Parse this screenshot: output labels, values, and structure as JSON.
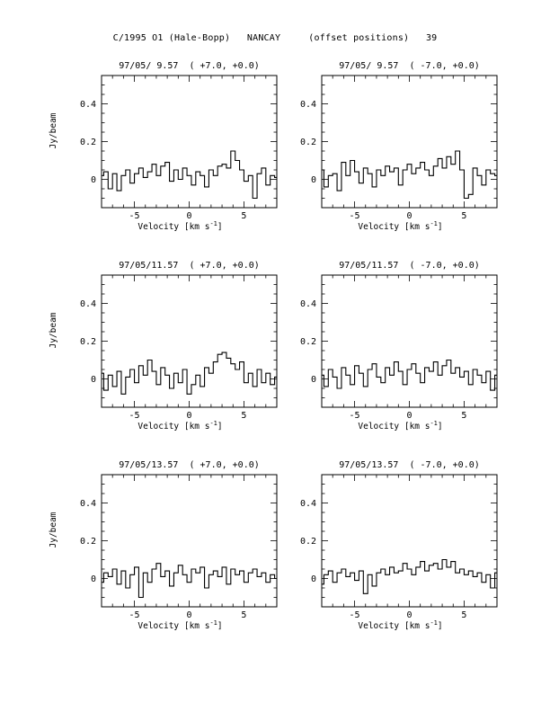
{
  "page_title": "C/1995 O1 (Hale-Bopp)   NANCAY     (offset positions)   39",
  "chart_data": [
    {
      "type": "line",
      "title": "97/05/ 9.57  ( +7.0, +0.0)",
      "xlabel": "Velocity [km s",
      "xlabel_sup": "-1",
      "xlabel_end": "]",
      "ylabel": "Jy/beam",
      "xlim": [
        -8,
        8
      ],
      "ylim": [
        -0.15,
        0.55
      ],
      "xticks": [
        -5,
        0,
        5
      ],
      "yticks": [
        0,
        0.2,
        0.4
      ],
      "x": [
        -8.0,
        -7.6,
        -7.2,
        -6.8,
        -6.4,
        -6.0,
        -5.6,
        -5.2,
        -4.8,
        -4.4,
        -4.0,
        -3.6,
        -3.2,
        -2.8,
        -2.4,
        -2.0,
        -1.6,
        -1.2,
        -0.8,
        -0.4,
        0.0,
        0.4,
        0.8,
        1.2,
        1.6,
        2.0,
        2.4,
        2.8,
        3.2,
        3.6,
        4.0,
        4.4,
        4.8,
        5.2,
        5.6,
        6.0,
        6.4,
        6.8,
        7.2,
        7.6,
        8.0
      ],
      "y": [
        0.02,
        0.04,
        -0.05,
        0.03,
        -0.06,
        0.02,
        0.05,
        -0.02,
        0.03,
        0.06,
        0.01,
        0.04,
        0.08,
        0.02,
        0.07,
        0.09,
        -0.01,
        0.05,
        0.0,
        0.06,
        0.02,
        -0.03,
        0.04,
        0.02,
        -0.04,
        0.05,
        0.02,
        0.07,
        0.08,
        0.06,
        0.15,
        0.1,
        0.05,
        -0.01,
        0.02,
        -0.1,
        0.03,
        0.06,
        -0.03,
        0.02,
        0.01
      ]
    },
    {
      "type": "line",
      "title": "97/05/ 9.57  ( -7.0, +0.0)",
      "xlabel": "Velocity [km s",
      "xlabel_sup": "-1",
      "xlabel_end": "]",
      "ylabel": "",
      "xlim": [
        -8,
        8
      ],
      "ylim": [
        -0.15,
        0.55
      ],
      "xticks": [
        -5,
        0,
        5
      ],
      "yticks": [
        0,
        0.2,
        0.4
      ],
      "x": [
        -8.0,
        -7.6,
        -7.2,
        -6.8,
        -6.4,
        -6.0,
        -5.6,
        -5.2,
        -4.8,
        -4.4,
        -4.0,
        -3.6,
        -3.2,
        -2.8,
        -2.4,
        -2.0,
        -1.6,
        -1.2,
        -0.8,
        -0.4,
        0.0,
        0.4,
        0.8,
        1.2,
        1.6,
        2.0,
        2.4,
        2.8,
        3.2,
        3.6,
        4.0,
        4.4,
        4.8,
        5.2,
        5.6,
        6.0,
        6.4,
        6.8,
        7.2,
        7.6,
        8.0
      ],
      "y": [
        0.05,
        -0.04,
        0.02,
        0.03,
        -0.06,
        0.09,
        0.02,
        0.1,
        0.04,
        -0.02,
        0.06,
        0.03,
        -0.04,
        0.05,
        0.02,
        0.07,
        0.04,
        0.06,
        -0.03,
        0.05,
        0.08,
        0.03,
        0.06,
        0.09,
        0.05,
        0.02,
        0.07,
        0.11,
        0.06,
        0.12,
        0.08,
        0.15,
        0.05,
        -0.1,
        -0.08,
        0.06,
        0.02,
        -0.03,
        0.05,
        0.03,
        0.02
      ]
    },
    {
      "type": "line",
      "title": "97/05/11.57  ( +7.0, +0.0)",
      "xlabel": "Velocity [km s",
      "xlabel_sup": "-1",
      "xlabel_end": "]",
      "ylabel": "Jy/beam",
      "xlim": [
        -8,
        8
      ],
      "ylim": [
        -0.15,
        0.55
      ],
      "xticks": [
        -5,
        0,
        5
      ],
      "yticks": [
        0,
        0.2,
        0.4
      ],
      "x": [
        -8.0,
        -7.6,
        -7.2,
        -6.8,
        -6.4,
        -6.0,
        -5.6,
        -5.2,
        -4.8,
        -4.4,
        -4.0,
        -3.6,
        -3.2,
        -2.8,
        -2.4,
        -2.0,
        -1.6,
        -1.2,
        -0.8,
        -0.4,
        0.0,
        0.4,
        0.8,
        1.2,
        1.6,
        2.0,
        2.4,
        2.8,
        3.2,
        3.6,
        4.0,
        4.4,
        4.8,
        5.2,
        5.6,
        6.0,
        6.4,
        6.8,
        7.2,
        7.6,
        8.0
      ],
      "y": [
        0.03,
        -0.06,
        0.02,
        -0.04,
        0.04,
        -0.08,
        0.01,
        0.05,
        -0.02,
        0.07,
        0.02,
        0.1,
        0.04,
        -0.03,
        0.06,
        0.02,
        -0.05,
        0.03,
        -0.02,
        0.05,
        -0.08,
        -0.03,
        0.02,
        -0.04,
        0.06,
        0.03,
        0.09,
        0.13,
        0.14,
        0.11,
        0.08,
        0.05,
        0.09,
        -0.02,
        0.03,
        -0.04,
        0.05,
        -0.02,
        0.03,
        -0.03,
        0.01
      ]
    },
    {
      "type": "line",
      "title": "97/05/11.57  ( -7.0, +0.0)",
      "xlabel": "Velocity [km s",
      "xlabel_sup": "-1",
      "xlabel_end": "]",
      "ylabel": "",
      "xlim": [
        -8,
        8
      ],
      "ylim": [
        -0.15,
        0.55
      ],
      "xticks": [
        -5,
        0,
        5
      ],
      "yticks": [
        0,
        0.2,
        0.4
      ],
      "x": [
        -8.0,
        -7.6,
        -7.2,
        -6.8,
        -6.4,
        -6.0,
        -5.6,
        -5.2,
        -4.8,
        -4.4,
        -4.0,
        -3.6,
        -3.2,
        -2.8,
        -2.4,
        -2.0,
        -1.6,
        -1.2,
        -0.8,
        -0.4,
        0.0,
        0.4,
        0.8,
        1.2,
        1.6,
        2.0,
        2.4,
        2.8,
        3.2,
        3.6,
        4.0,
        4.4,
        4.8,
        5.2,
        5.6,
        6.0,
        6.4,
        6.8,
        7.2,
        7.6,
        8.0
      ],
      "y": [
        0.02,
        -0.04,
        0.05,
        0.01,
        -0.05,
        0.06,
        0.02,
        -0.03,
        0.07,
        0.03,
        -0.04,
        0.05,
        0.08,
        0.01,
        -0.02,
        0.06,
        0.02,
        0.09,
        0.04,
        -0.03,
        0.05,
        0.08,
        0.03,
        -0.02,
        0.06,
        0.04,
        0.09,
        0.02,
        0.07,
        0.1,
        0.03,
        0.06,
        0.01,
        0.04,
        -0.03,
        0.05,
        0.02,
        -0.02,
        0.04,
        -0.06,
        0.02
      ]
    },
    {
      "type": "line",
      "title": "97/05/13.57  ( +7.0, +0.0)",
      "xlabel": "Velocity [km s",
      "xlabel_sup": "-1",
      "xlabel_end": "]",
      "ylabel": "Jy/beam",
      "xlim": [
        -8,
        8
      ],
      "ylim": [
        -0.15,
        0.55
      ],
      "xticks": [
        -5,
        0,
        5
      ],
      "yticks": [
        0,
        0.2,
        0.4
      ],
      "x": [
        -8.0,
        -7.6,
        -7.2,
        -6.8,
        -6.4,
        -6.0,
        -5.6,
        -5.2,
        -4.8,
        -4.4,
        -4.0,
        -3.6,
        -3.2,
        -2.8,
        -2.4,
        -2.0,
        -1.6,
        -1.2,
        -0.8,
        -0.4,
        0.0,
        0.4,
        0.8,
        1.2,
        1.6,
        2.0,
        2.4,
        2.8,
        3.2,
        3.6,
        4.0,
        4.4,
        4.8,
        5.2,
        5.6,
        6.0,
        6.4,
        6.8,
        7.2,
        7.6,
        8.0
      ],
      "y": [
        -0.02,
        0.03,
        0.01,
        0.05,
        -0.03,
        0.04,
        -0.05,
        0.02,
        0.06,
        -0.1,
        0.03,
        -0.02,
        0.05,
        0.08,
        0.01,
        0.04,
        -0.04,
        0.03,
        0.07,
        0.02,
        -0.02,
        0.05,
        0.03,
        0.06,
        -0.05,
        0.02,
        0.04,
        0.01,
        0.06,
        -0.03,
        0.05,
        0.02,
        0.04,
        -0.02,
        0.03,
        0.05,
        0.01,
        0.03,
        -0.02,
        0.02,
        0.0
      ]
    },
    {
      "type": "line",
      "title": "97/05/13.57  ( -7.0, +0.0)",
      "xlabel": "Velocity [km s",
      "xlabel_sup": "-1",
      "xlabel_end": "]",
      "ylabel": "",
      "xlim": [
        -8,
        8
      ],
      "ylim": [
        -0.15,
        0.55
      ],
      "xticks": [
        -5,
        0,
        5
      ],
      "yticks": [
        0,
        0.2,
        0.4
      ],
      "x": [
        -8.0,
        -7.6,
        -7.2,
        -6.8,
        -6.4,
        -6.0,
        -5.6,
        -5.2,
        -4.8,
        -4.4,
        -4.0,
        -3.6,
        -3.2,
        -2.8,
        -2.4,
        -2.0,
        -1.6,
        -1.2,
        -0.8,
        -0.4,
        0.0,
        0.4,
        0.8,
        1.2,
        1.6,
        2.0,
        2.4,
        2.8,
        3.2,
        3.6,
        4.0,
        4.4,
        4.8,
        5.2,
        5.6,
        6.0,
        6.4,
        6.8,
        7.2,
        7.6,
        8.0
      ],
      "y": [
        -0.03,
        0.02,
        0.04,
        -0.02,
        0.03,
        0.05,
        0.01,
        0.03,
        -0.01,
        0.04,
        -0.08,
        0.02,
        -0.04,
        0.03,
        0.05,
        0.02,
        0.06,
        0.03,
        0.04,
        0.08,
        0.05,
        0.02,
        0.06,
        0.09,
        0.04,
        0.07,
        0.08,
        0.05,
        0.1,
        0.06,
        0.09,
        0.03,
        0.05,
        0.02,
        0.04,
        0.01,
        0.03,
        -0.02,
        0.02,
        -0.05,
        0.03
      ]
    }
  ]
}
